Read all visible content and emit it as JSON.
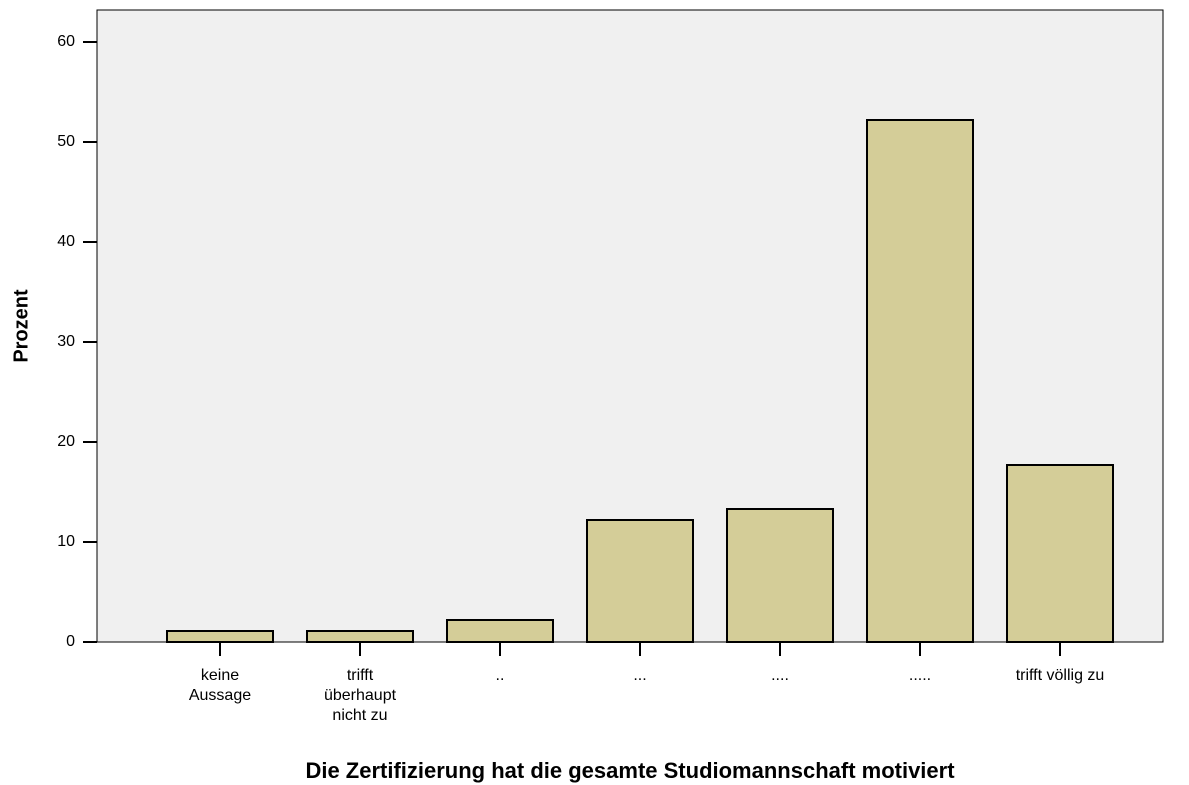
{
  "chart_data": {
    "type": "bar",
    "x_label": "Die Zertifizierung hat die gesamte Studiomannschaft motiviert",
    "y_label": "Prozent",
    "categories": [
      "keine Aussage",
      "trifft überhaupt nicht zu",
      "..",
      "...",
      "....",
      ".....",
      "trifft völlig zu"
    ],
    "values": [
      1.1,
      1.1,
      2.2,
      12.2,
      13.3,
      52.2,
      17.7
    ],
    "color": "#d4cd98",
    "ylim": [
      0,
      63.2
    ],
    "yticks": [
      0,
      10,
      20,
      30,
      40,
      50,
      60
    ],
    "grid": false
  }
}
